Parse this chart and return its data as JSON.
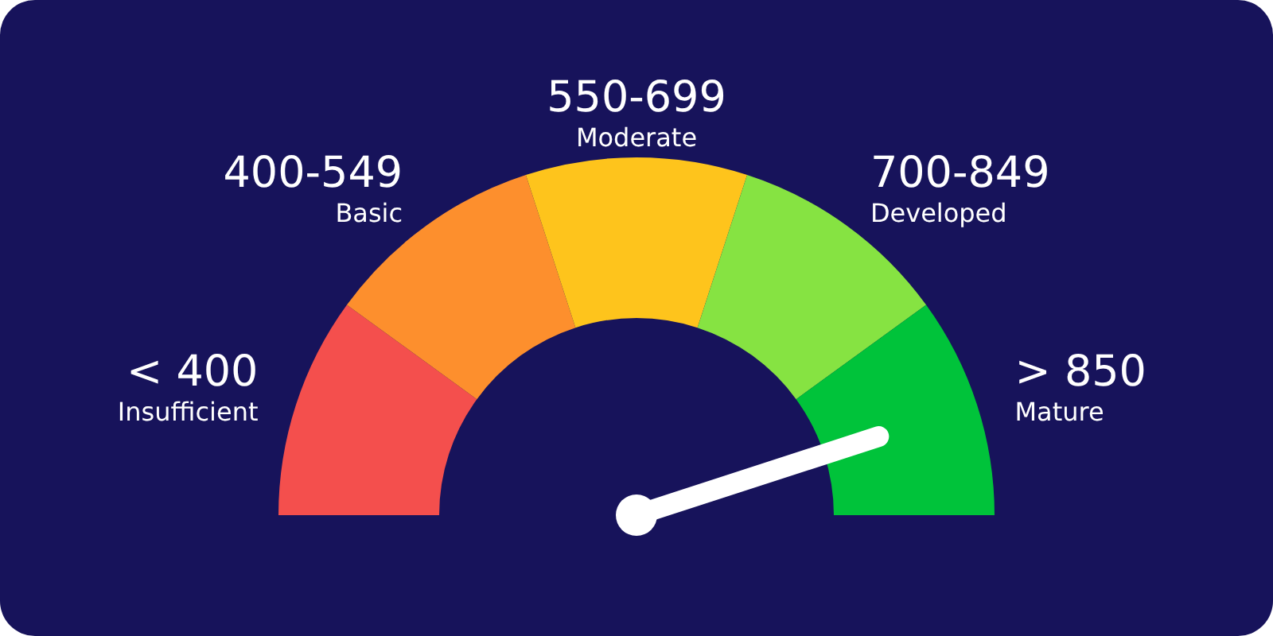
{
  "chart_data": {
    "type": "donut",
    "categories": [
      "< 400\nInsufficient",
      "400-549\nBasic",
      "550-699\nModerate",
      "700-849\nDeveloped",
      "> 850\nMature"
    ],
    "values": [
      20,
      20,
      20,
      20,
      20
    ],
    "colors": [
      "#f44f4d",
      "#fd8f2d",
      "#fec41c",
      "#86e342",
      "#00c33a"
    ],
    "needle": "> 850\nMature"
  }
}
